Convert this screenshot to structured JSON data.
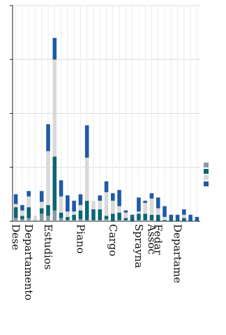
{
  "chart_data": {
    "type": "bar",
    "stacked": true,
    "title": "",
    "xlabel": "",
    "ylabel": "",
    "ylim": [
      0,
      200
    ],
    "y_ticks": [
      0,
      50,
      100,
      150,
      200
    ],
    "y_tick_labels": [
      "",
      "",
      "",
      "",
      ""
    ],
    "grid": true,
    "legend_position": "right",
    "categories": [
      "Dese",
      "",
      "Departamento",
      "",
      "",
      "Estudios",
      "",
      "",
      "",
      "",
      "Piano",
      "",
      "",
      "",
      "",
      "Cargo",
      "",
      "",
      "",
      "Sprayna",
      "",
      "Assoc",
      "Fedar",
      "",
      "",
      "Departame",
      "",
      "",
      ""
    ],
    "series": [
      {
        "name": "",
        "color": "#8a9aa6",
        "values": [
          3,
          2,
          3,
          1,
          7,
          5,
          10,
          3,
          1,
          1,
          2,
          1,
          1,
          1,
          2,
          0,
          1,
          1,
          0,
          1,
          1,
          1,
          0,
          0,
          0,
          0,
          0,
          0,
          0
        ]
      },
      {
        "name": "",
        "color": "#0b6574",
        "values": [
          10,
          3,
          10,
          0,
          5,
          10,
          50,
          5,
          3,
          5,
          8,
          18,
          10,
          10,
          3,
          7,
          7,
          2,
          4,
          6,
          6,
          5,
          6,
          1,
          1,
          1,
          3,
          0,
          0
        ]
      },
      {
        "name": "",
        "color": "#d9d9d9",
        "values": [
          3,
          5,
          10,
          4,
          6,
          50,
          90,
          15,
          5,
          3,
          5,
          40,
          8,
          8,
          22,
          12,
          6,
          5,
          0,
          2,
          10,
          15,
          6,
          3,
          0,
          0,
          3,
          0,
          0
        ]
      },
      {
        "name": "",
        "color": "#1f5aa6",
        "values": [
          9,
          5,
          5,
          0,
          10,
          25,
          20,
          15,
          15,
          10,
          10,
          30,
          0,
          5,
          10,
          7,
          15,
          2,
          2,
          13,
          2,
          5,
          10,
          10,
          5,
          5,
          5,
          6,
          4
        ]
      }
    ]
  }
}
